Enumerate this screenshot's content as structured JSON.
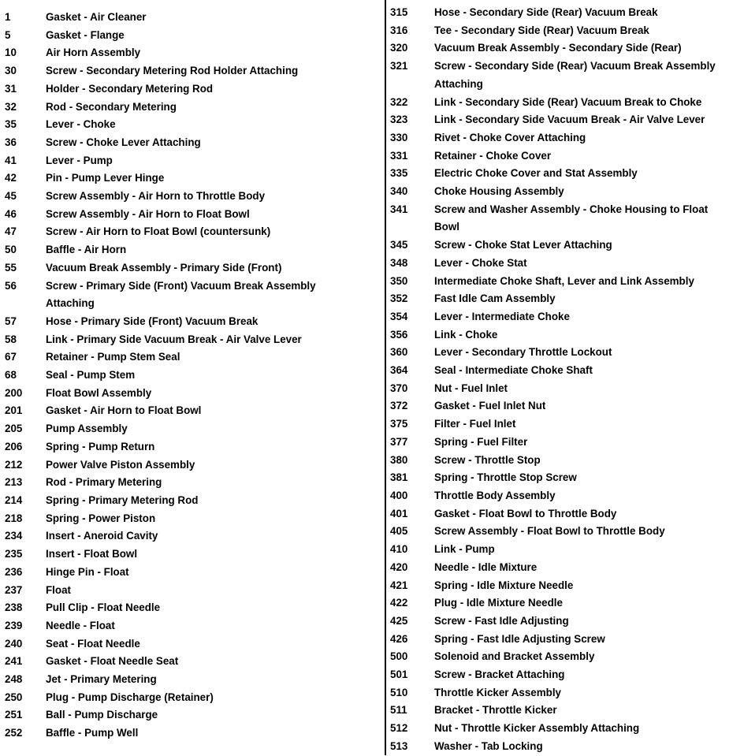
{
  "left": [
    {
      "number": "1",
      "description": "Gasket - Air Cleaner"
    },
    {
      "number": "5",
      "description": "Gasket - Flange"
    },
    {
      "number": "10",
      "description": "Air Horn Assembly"
    },
    {
      "number": "30",
      "description": "Screw - Secondary Metering Rod Holder Attaching"
    },
    {
      "number": "31",
      "description": "Holder - Secondary Metering Rod"
    },
    {
      "number": "32",
      "description": "Rod - Secondary Metering"
    },
    {
      "number": "35",
      "description": "Lever - Choke"
    },
    {
      "number": "36",
      "description": "Screw - Choke Lever Attaching"
    },
    {
      "number": "41",
      "description": "Lever - Pump"
    },
    {
      "number": "42",
      "description": "Pin - Pump Lever Hinge"
    },
    {
      "number": "45",
      "description": "Screw Assembly - Air Horn to Throttle Body"
    },
    {
      "number": "46",
      "description": "Screw Assembly - Air Horn to Float Bowl"
    },
    {
      "number": "47",
      "description": "Screw - Air Horn to Float Bowl (countersunk)"
    },
    {
      "number": "50",
      "description": "Baffle - Air Horn"
    },
    {
      "number": "55",
      "description": "Vacuum Break Assembly - Primary Side (Front)"
    },
    {
      "number": "56",
      "description": "Screw - Primary Side (Front) Vacuum Break Assembly Attaching"
    },
    {
      "number": "57",
      "description": "Hose - Primary Side (Front) Vacuum Break"
    },
    {
      "number": "58",
      "description": "Link - Primary Side Vacuum Break - Air Valve Lever"
    },
    {
      "number": "67",
      "description": "Retainer - Pump Stem Seal"
    },
    {
      "number": "68",
      "description": "Seal - Pump Stem"
    },
    {
      "number": "200",
      "description": "Float Bowl Assembly"
    },
    {
      "number": "201",
      "description": "Gasket - Air Horn to Float Bowl"
    },
    {
      "number": "205",
      "description": "Pump Assembly"
    },
    {
      "number": "206",
      "description": "Spring - Pump Return"
    },
    {
      "number": "212",
      "description": "Power Valve Piston Assembly"
    },
    {
      "number": "213",
      "description": "Rod - Primary Metering"
    },
    {
      "number": "214",
      "description": "Spring - Primary Metering Rod"
    },
    {
      "number": "218",
      "description": "Spring - Power Piston"
    },
    {
      "number": "234",
      "description": "Insert - Aneroid Cavity"
    },
    {
      "number": "235",
      "description": "Insert - Float Bowl"
    },
    {
      "number": "236",
      "description": "Hinge Pin - Float"
    },
    {
      "number": "237",
      "description": "Float"
    },
    {
      "number": "238",
      "description": "Pull Clip - Float Needle"
    },
    {
      "number": "239",
      "description": "Needle - Float"
    },
    {
      "number": "240",
      "description": "Seat - Float Needle"
    },
    {
      "number": "241",
      "description": "Gasket - Float Needle Seat"
    },
    {
      "number": "248",
      "description": "Jet - Primary Metering"
    },
    {
      "number": "250",
      "description": "Plug - Pump Discharge (Retainer)"
    },
    {
      "number": "251",
      "description": "Ball - Pump Discharge"
    },
    {
      "number": "252",
      "description": "Baffle - Pump Well"
    }
  ],
  "right": [
    {
      "number": "315",
      "description": "Hose - Secondary Side (Rear) Vacuum Break"
    },
    {
      "number": "316",
      "description": "Tee - Secondary Side (Rear) Vacuum Break"
    },
    {
      "number": "320",
      "description": "Vacuum Break Assembly - Secondary Side (Rear)"
    },
    {
      "number": "321",
      "description": "Screw - Secondary Side (Rear) Vacuum Break Assembly Attaching"
    },
    {
      "number": "322",
      "description": "Link - Secondary Side (Rear) Vacuum Break to Choke"
    },
    {
      "number": "323",
      "description": "Link - Secondary Side Vacuum Break - Air Valve Lever"
    },
    {
      "number": "330",
      "description": "Rivet - Choke Cover Attaching"
    },
    {
      "number": "331",
      "description": "Retainer - Choke Cover"
    },
    {
      "number": "335",
      "description": "Electric Choke Cover and Stat Assembly"
    },
    {
      "number": "340",
      "description": "Choke Housing Assembly"
    },
    {
      "number": "341",
      "description": "Screw and Washer Assembly - Choke Housing to Float Bowl"
    },
    {
      "number": "345",
      "description": "Screw - Choke Stat Lever Attaching"
    },
    {
      "number": "348",
      "description": "Lever - Choke Stat"
    },
    {
      "number": "350",
      "description": "Intermediate Choke Shaft, Lever and Link Assembly"
    },
    {
      "number": "352",
      "description": "Fast Idle Cam Assembly"
    },
    {
      "number": "354",
      "description": "Lever - Intermediate Choke"
    },
    {
      "number": "356",
      "description": "Link - Choke"
    },
    {
      "number": "360",
      "description": "Lever - Secondary Throttle Lockout"
    },
    {
      "number": "364",
      "description": "Seal - Intermediate Choke Shaft"
    },
    {
      "number": "370",
      "description": "Nut - Fuel Inlet"
    },
    {
      "number": "372",
      "description": "Gasket - Fuel Inlet Nut"
    },
    {
      "number": "375",
      "description": "Filter - Fuel Inlet"
    },
    {
      "number": "377",
      "description": "Spring - Fuel Filter"
    },
    {
      "number": "380",
      "description": "Screw - Throttle Stop"
    },
    {
      "number": "381",
      "description": "Spring - Throttle Stop Screw"
    },
    {
      "number": "400",
      "description": "Throttle Body Assembly"
    },
    {
      "number": "401",
      "description": "Gasket - Float Bowl to Throttle Body"
    },
    {
      "number": "405",
      "description": "Screw Assembly - Float Bowl to Throttle Body"
    },
    {
      "number": "410",
      "description": "Link - Pump"
    },
    {
      "number": "420",
      "description": "Needle - Idle Mixture"
    },
    {
      "number": "421",
      "description": "Spring - Idle Mixture Needle"
    },
    {
      "number": "422",
      "description": "Plug - Idle Mixture Needle"
    },
    {
      "number": "425",
      "description": "Screw - Fast Idle Adjusting"
    },
    {
      "number": "426",
      "description": "Spring - Fast Idle Adjusting Screw"
    },
    {
      "number": "500",
      "description": "Solenoid and Bracket Assembly"
    },
    {
      "number": "501",
      "description": "Screw - Bracket Attaching"
    },
    {
      "number": "510",
      "description": "Throttle Kicker Assembly"
    },
    {
      "number": "511",
      "description": "Bracket - Throttle Kicker"
    },
    {
      "number": "512",
      "description": "Nut - Throttle Kicker Assembly Attaching"
    },
    {
      "number": "513",
      "description": "Washer - Tab Locking"
    }
  ]
}
